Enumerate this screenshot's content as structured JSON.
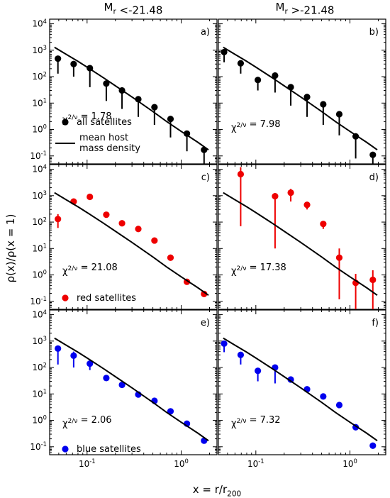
{
  "figure": {
    "col_titles": [
      "M_r <-21.48",
      "M_r >-21.48"
    ],
    "ylabel": "ρ(x)/ρ(x = 1)",
    "xlabel": "x = r/r_200",
    "x_axis": {
      "scale": "log",
      "lim": [
        0.04,
        2.4
      ],
      "ticks": [
        0.1,
        1
      ],
      "tick_labels": [
        "10^-1",
        "10^0"
      ]
    },
    "y_axis": {
      "scale": "log",
      "lim": [
        0.05,
        15000
      ],
      "ticks": [
        0.1,
        1,
        10,
        100,
        1000,
        10000
      ],
      "tick_labels": [
        "10^-1",
        "10^0",
        "10^1",
        "10^2",
        "10^3",
        "10^4"
      ]
    }
  },
  "chart_data": [
    {
      "type": "scatter",
      "panel": "a)",
      "column_title": "M_r <-21.48",
      "chi2_label": "χ²/ν = 1.78",
      "series": [
        {
          "name": "all satellites",
          "color": "#000000",
          "marker": "circle",
          "x": [
            0.049,
            0.072,
            0.107,
            0.16,
            0.235,
            0.35,
            0.52,
            0.77,
            1.15,
            1.75
          ],
          "y": [
            480,
            300,
            210,
            55,
            30,
            14,
            7,
            2.5,
            0.7,
            0.17
          ],
          "err_lo": [
            130,
            100,
            40,
            12,
            6,
            3,
            1.5,
            0.5,
            0.15,
            0.04
          ],
          "err_hi": [
            600,
            380,
            260,
            68,
            37,
            17,
            8.5,
            3.1,
            0.85,
            0.21
          ]
        },
        {
          "name": "mean host mass density",
          "color": "#000000",
          "style": "line",
          "x": [
            0.045,
            0.06,
            0.08,
            0.1,
            0.15,
            0.2,
            0.3,
            0.5,
            0.7,
            1.0,
            1.5,
            1.95
          ],
          "y": [
            1300,
            700,
            380,
            230,
            90,
            45,
            17,
            4.8,
            2.0,
            0.85,
            0.33,
            0.17
          ]
        }
      ]
    },
    {
      "type": "scatter",
      "panel": "b)",
      "column_title": "M_r >-21.48",
      "chi2_label": "χ²/ν = 7.98",
      "series": [
        {
          "name": "all satellites",
          "color": "#000000",
          "marker": "circle",
          "x": [
            0.046,
            0.069,
            0.105,
            0.16,
            0.235,
            0.35,
            0.52,
            0.77,
            1.15,
            1.75
          ],
          "y": [
            850,
            320,
            75,
            110,
            40,
            17,
            9,
            3.8,
            0.55,
            0.11
          ],
          "err_lo": [
            350,
            130,
            30,
            25,
            8,
            3,
            1.5,
            0.6,
            0.08,
            0.02
          ],
          "err_hi": [
            1100,
            400,
            90,
            130,
            48,
            20,
            11,
            4.5,
            0.65,
            0.13
          ]
        },
        {
          "name": "mean host mass density",
          "color": "#000000",
          "style": "line",
          "x": [
            0.045,
            0.06,
            0.08,
            0.1,
            0.15,
            0.2,
            0.3,
            0.5,
            0.7,
            1.0,
            1.5,
            1.95
          ],
          "y": [
            1300,
            700,
            380,
            230,
            90,
            45,
            17,
            4.8,
            2.0,
            0.85,
            0.33,
            0.17
          ]
        }
      ]
    },
    {
      "type": "scatter",
      "panel": "c)",
      "chi2_label": "χ²/ν = 21.08",
      "series": [
        {
          "name": "red satellites",
          "color": "#ee0000",
          "marker": "circle",
          "x": [
            0.049,
            0.072,
            0.107,
            0.16,
            0.235,
            0.35,
            0.52,
            0.77,
            1.15,
            1.75
          ],
          "y": [
            130,
            600,
            900,
            190,
            90,
            55,
            20,
            4.5,
            0.55,
            0.19
          ],
          "err_lo": [
            60,
            480,
            700,
            160,
            75,
            46,
            16,
            3.6,
            0.42,
            0.15
          ],
          "err_hi": [
            200,
            720,
            1100,
            220,
            105,
            64,
            24,
            5.4,
            0.68,
            0.23
          ]
        },
        {
          "name": "mean host mass density",
          "color": "#000000",
          "style": "line",
          "x": [
            0.045,
            0.06,
            0.08,
            0.1,
            0.15,
            0.2,
            0.3,
            0.5,
            0.7,
            1.0,
            1.5,
            1.95
          ],
          "y": [
            1300,
            700,
            380,
            230,
            90,
            45,
            17,
            4.8,
            2.0,
            0.85,
            0.33,
            0.17
          ]
        }
      ]
    },
    {
      "type": "scatter",
      "panel": "d)",
      "chi2_label": "χ²/ν = 17.38",
      "series": [
        {
          "name": "red satellites",
          "color": "#ee0000",
          "marker": "circle",
          "x": [
            0.069,
            0.16,
            0.235,
            0.35,
            0.52,
            0.77,
            1.15,
            1.75
          ],
          "y": [
            6500,
            950,
            1300,
            450,
            85,
            4.5,
            0.5,
            0.65
          ],
          "err_lo": [
            70,
            10,
            600,
            300,
            55,
            0.12,
            0.035,
            0.035
          ],
          "err_hi": [
            12000,
            1200,
            1800,
            550,
            100,
            10,
            1.1,
            1.5
          ]
        },
        {
          "name": "mean host mass density",
          "color": "#000000",
          "style": "line",
          "x": [
            0.045,
            0.06,
            0.08,
            0.1,
            0.15,
            0.2,
            0.3,
            0.5,
            0.7,
            1.0,
            1.5,
            1.95
          ],
          "y": [
            1300,
            700,
            380,
            230,
            90,
            45,
            17,
            4.8,
            2.0,
            0.85,
            0.33,
            0.17
          ]
        }
      ]
    },
    {
      "type": "scatter",
      "panel": "e)",
      "chi2_label": "χ²/ν = 2.06",
      "series": [
        {
          "name": "blue satellites",
          "color": "#0000ee",
          "marker": "circle",
          "x": [
            0.049,
            0.072,
            0.107,
            0.16,
            0.235,
            0.35,
            0.52,
            0.77,
            1.15,
            1.75
          ],
          "y": [
            520,
            280,
            140,
            40,
            22,
            9.5,
            5.5,
            2.2,
            0.75,
            0.17
          ],
          "err_lo": [
            130,
            100,
            80,
            32,
            18,
            7.6,
            4.4,
            1.8,
            0.6,
            0.14
          ],
          "err_hi": [
            650,
            400,
            175,
            48,
            26,
            11.5,
            6.6,
            2.6,
            0.9,
            0.2
          ]
        },
        {
          "name": "mean host mass density",
          "color": "#000000",
          "style": "line",
          "x": [
            0.045,
            0.06,
            0.08,
            0.1,
            0.15,
            0.2,
            0.3,
            0.5,
            0.7,
            1.0,
            1.5,
            1.95
          ],
          "y": [
            1300,
            700,
            380,
            230,
            90,
            45,
            17,
            4.8,
            2.0,
            0.85,
            0.33,
            0.17
          ]
        }
      ]
    },
    {
      "type": "scatter",
      "panel": "f)",
      "chi2_label": "χ²/ν = 7.32",
      "series": [
        {
          "name": "blue satellites",
          "color": "#0000ee",
          "marker": "circle",
          "x": [
            0.046,
            0.069,
            0.105,
            0.16,
            0.235,
            0.35,
            0.52,
            0.77,
            1.15,
            1.75
          ],
          "y": [
            800,
            300,
            75,
            100,
            35,
            15,
            8,
            3.8,
            0.55,
            0.11
          ],
          "err_lo": [
            380,
            130,
            30,
            25,
            28,
            12,
            6.4,
            3.0,
            0.44,
            0.09
          ],
          "err_hi": [
            1000,
            380,
            90,
            125,
            42,
            18,
            9.6,
            4.5,
            0.66,
            0.13
          ]
        },
        {
          "name": "mean host mass density",
          "color": "#000000",
          "style": "line",
          "x": [
            0.045,
            0.06,
            0.08,
            0.1,
            0.15,
            0.2,
            0.3,
            0.5,
            0.7,
            1.0,
            1.5,
            1.95
          ],
          "y": [
            1300,
            700,
            380,
            230,
            90,
            45,
            17,
            4.8,
            2.0,
            0.85,
            0.33,
            0.17
          ]
        }
      ]
    }
  ],
  "legends": {
    "a": [
      {
        "label": "all satellites",
        "kind": "marker",
        "color": "#000000"
      },
      {
        "label_lines": [
          "mean host",
          "mass density"
        ],
        "kind": "line",
        "color": "#000000"
      }
    ],
    "c": [
      {
        "label": "red satellites",
        "kind": "marker",
        "color": "#ee0000"
      }
    ],
    "e": [
      {
        "label": "blue satellites",
        "kind": "marker",
        "color": "#0000ee"
      }
    ]
  }
}
